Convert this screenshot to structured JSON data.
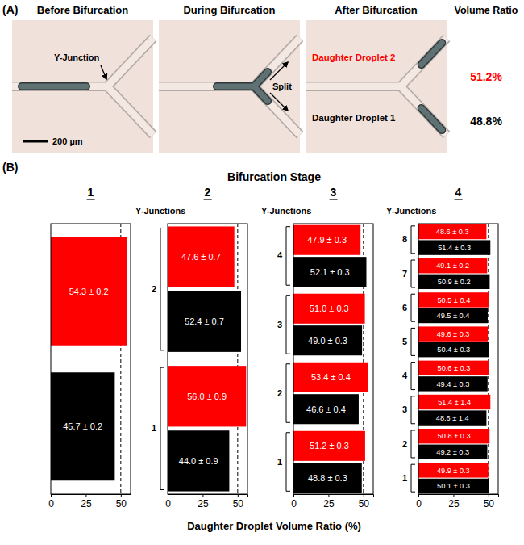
{
  "panel_a": {
    "label": "(A)",
    "headers": [
      "Before Bifurcation",
      "During Bifurcation",
      "After Bifurcation",
      "Volume Ratio"
    ],
    "annotations": {
      "junction": "Y-Junction",
      "split": "Split",
      "scale_bar": "200 µm",
      "daughter_2": "Daughter Droplet 2",
      "daughter_1": "Daughter Droplet 1"
    },
    "volume_ratios": [
      "51.2%",
      "48.8%"
    ]
  },
  "panel_b": {
    "label": "(B)",
    "title": "Bifurcation Stage",
    "x_label": "Daughter Droplet Volume Ratio (%)"
  },
  "chart_data": [
    {
      "type": "bar",
      "orientation": "horizontal",
      "title": "1",
      "data_labels": true,
      "categories": [
        null
      ],
      "series": [
        {
          "color": "#ff0000",
          "values": [
            54.3
          ],
          "value_labels": [
            "54.3 ± 0.2"
          ]
        },
        {
          "color": "#000000",
          "values": [
            45.7
          ],
          "value_labels": [
            "45.7 ± 0.2"
          ]
        }
      ],
      "xlim": [
        0,
        57
      ],
      "xticks": [
        0,
        25,
        50
      ],
      "reference_x": 50
    },
    {
      "type": "bar",
      "orientation": "horizontal",
      "title": "2",
      "y_label": "Y-Junctions",
      "data_labels": true,
      "categories": [
        "1",
        "2"
      ],
      "series": [
        {
          "color": "#ff0000",
          "values": [
            56.0,
            47.6
          ],
          "value_labels": [
            "56.0 ± 0.9",
            "47.6 ± 0.7"
          ]
        },
        {
          "color": "#000000",
          "values": [
            44.0,
            52.4
          ],
          "value_labels": [
            "44.0 ± 0.9",
            "52.4 ± 0.7"
          ]
        }
      ],
      "xlim": [
        0,
        57
      ],
      "xticks": [
        0,
        25,
        50
      ],
      "reference_x": 50
    },
    {
      "type": "bar",
      "orientation": "horizontal",
      "title": "3",
      "y_label": "Y-Junctions",
      "data_labels": true,
      "categories": [
        "1",
        "2",
        "3",
        "4"
      ],
      "series": [
        {
          "color": "#ff0000",
          "values": [
            51.2,
            53.4,
            51.0,
            47.9
          ],
          "value_labels": [
            "51.2 ± 0.3",
            "53.4 ± 0.4",
            "51.0 ± 0.3",
            "47.9 ± 0.3"
          ]
        },
        {
          "color": "#000000",
          "values": [
            48.8,
            46.6,
            49.0,
            52.1
          ],
          "value_labels": [
            "48.8 ± 0.3",
            "46.6 ± 0.4",
            "49.0 ± 0.3",
            "52.1 ± 0.3"
          ]
        }
      ],
      "xlim": [
        0,
        57
      ],
      "xticks": [
        0,
        25,
        50
      ],
      "reference_x": 50
    },
    {
      "type": "bar",
      "orientation": "horizontal",
      "title": "4",
      "y_label": "Y-Junctions",
      "data_labels": true,
      "categories": [
        "1",
        "2",
        "3",
        "4",
        "5",
        "6",
        "7",
        "8"
      ],
      "series": [
        {
          "color": "#ff0000",
          "values": [
            49.9,
            50.8,
            51.4,
            50.6,
            49.6,
            50.5,
            49.1,
            48.6
          ],
          "value_labels": [
            "49.9 ± 0.3",
            "50.8 ± 0.3",
            "51.4 ± 1.4",
            "50.6 ± 0.3",
            "49.6 ± 0.3",
            "50.5 ± 0.4",
            "49.1 ± 0.2",
            "48.6 ± 0.3"
          ]
        },
        {
          "color": "#000000",
          "values": [
            50.1,
            49.2,
            48.6,
            49.4,
            50.4,
            49.5,
            50.9,
            51.4
          ],
          "value_labels": [
            "50.1 ± 0.3",
            "49.2 ± 0.3",
            "48.6 ± 1.4",
            "49.4 ± 0.3",
            "50.4 ± 0.3",
            "49.5 ± 0.4",
            "50.9 ± 0.2",
            "51.4 ± 0.3"
          ]
        }
      ],
      "xlim": [
        0,
        57
      ],
      "xticks": [
        0,
        25,
        50
      ],
      "reference_x": 50
    }
  ]
}
